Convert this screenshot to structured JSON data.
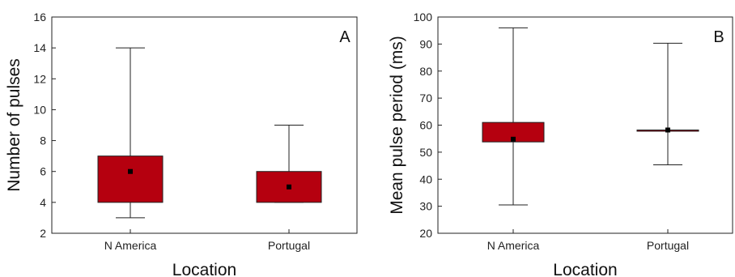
{
  "colors": {
    "box_fill": "#b5000f",
    "median_line": "#4a0005",
    "mean_marker": "#000000",
    "frame": "#222222"
  },
  "chart_data": [
    {
      "type": "box",
      "panel_label": "A",
      "xlabel": "Location",
      "ylabel": "Number of pulses",
      "ylim": [
        2,
        16
      ],
      "yticks": [
        2,
        4,
        6,
        8,
        10,
        12,
        14,
        16
      ],
      "categories": [
        "N America",
        "Portugal"
      ],
      "series": [
        {
          "category": "N America",
          "min": 3,
          "q1": 4,
          "median": 6,
          "q3": 7,
          "max": 14,
          "mean": 6
        },
        {
          "category": "Portugal",
          "min": 4,
          "q1": 4,
          "median": 5,
          "q3": 6,
          "max": 9,
          "mean": 5
        }
      ]
    },
    {
      "type": "box",
      "panel_label": "B",
      "xlabel": "Location",
      "ylabel": "Mean pulse period (ms)",
      "ylim": [
        20,
        100
      ],
      "yticks": [
        20,
        30,
        40,
        50,
        60,
        70,
        80,
        90,
        100
      ],
      "categories": [
        "N America",
        "Portugal"
      ],
      "series": [
        {
          "category": "N America",
          "min": 30.5,
          "q1": 53.8,
          "median": 55,
          "q3": 61,
          "max": 96,
          "mean": 54.8
        },
        {
          "category": "Portugal",
          "min": 45.3,
          "q1": 57.8,
          "median": 58,
          "q3": 58.2,
          "max": 90.3,
          "mean": 58.2
        }
      ]
    }
  ]
}
